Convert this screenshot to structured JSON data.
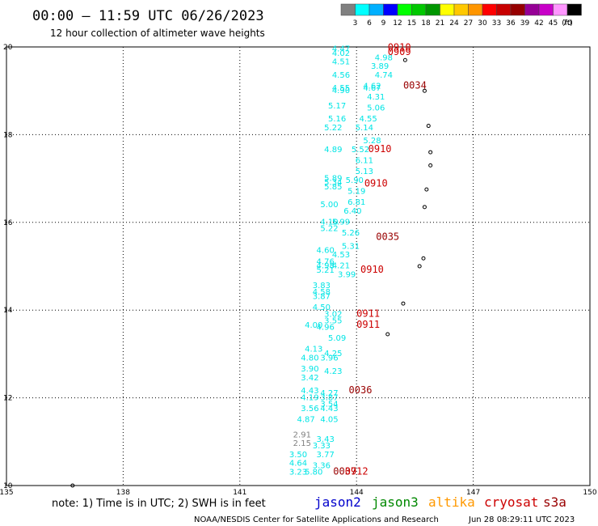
{
  "title": "00:00 – 11:59 UTC 06/26/2023",
  "subtitle": "12 hour collection of altimeter wave heights",
  "legend": {
    "values": [
      "3",
      "6",
      "9",
      "12",
      "15",
      "18",
      "21",
      "24",
      "27",
      "30",
      "33",
      "36",
      "39",
      "42",
      "45",
      "70",
      "(ft)"
    ],
    "colors": [
      "#808080",
      "#00ffff",
      "#00b0ff",
      "#0000ff",
      "#00ff00",
      "#00c800",
      "#009600",
      "#ffff00",
      "#ffc800",
      "#ff9600",
      "#ff0000",
      "#c80000",
      "#960000",
      "#960096",
      "#c800c8",
      "#ff96ff",
      "#000000"
    ]
  },
  "note": "note:  1) Time is in UTC;  2) SWH is in feet",
  "satellites": [
    {
      "name": "jason2",
      "color": "#0000cc"
    },
    {
      "name": "jason3",
      "color": "#008800"
    },
    {
      "name": "altika",
      "color": "#ff9900"
    },
    {
      "name": "cryosat",
      "color": "#cc0000"
    },
    {
      "name": "s3a",
      "color": "#990000"
    }
  ],
  "footer_left": "NOAA/NESDIS Center for Satellite Applications and Research",
  "footer_right": "Jun 28 08:29:11 UTC 2023",
  "chart_data": {
    "type": "scatter",
    "xlim": [
      135,
      150
    ],
    "ylim": [
      10,
      20
    ],
    "x_ticks": [
      135,
      138,
      141,
      144,
      147,
      150
    ],
    "y_ticks": [
      10,
      12,
      14,
      16,
      18,
      20
    ],
    "grid": true,
    "observations": [
      {
        "lon": 143.6,
        "lat": 19.9,
        "swh": "4.47",
        "color": "#00e5e5"
      },
      {
        "lon": 143.6,
        "lat": 19.8,
        "swh": "4.02",
        "color": "#00e5e5"
      },
      {
        "lon": 144.7,
        "lat": 19.7,
        "swh": "4.98",
        "color": "#00e5e5"
      },
      {
        "lon": 143.6,
        "lat": 19.6,
        "swh": "4.51",
        "color": "#00e5e5"
      },
      {
        "lon": 144.6,
        "lat": 19.5,
        "swh": "3.89",
        "color": "#00e5e5"
      },
      {
        "lon": 144.7,
        "lat": 19.3,
        "swh": "4.74",
        "color": "#00e5e5"
      },
      {
        "lon": 143.6,
        "lat": 19.3,
        "swh": "4.56",
        "color": "#00e5e5"
      },
      {
        "lon": 144.4,
        "lat": 19.05,
        "swh": "4.62",
        "color": "#00e5e5"
      },
      {
        "lon": 143.6,
        "lat": 19.0,
        "swh": "4.55",
        "color": "#00e5e5"
      },
      {
        "lon": 144.4,
        "lat": 19.0,
        "swh": "4.67",
        "color": "#00e5e5"
      },
      {
        "lon": 143.6,
        "lat": 18.95,
        "swh": "4.90",
        "color": "#00e5e5"
      },
      {
        "lon": 144.5,
        "lat": 18.8,
        "swh": "4.31",
        "color": "#00e5e5"
      },
      {
        "lon": 143.5,
        "lat": 18.6,
        "swh": "5.17",
        "color": "#00e5e5"
      },
      {
        "lon": 144.5,
        "lat": 18.55,
        "swh": "5.06",
        "color": "#00e5e5"
      },
      {
        "lon": 143.5,
        "lat": 18.3,
        "swh": "5.16",
        "color": "#00e5e5"
      },
      {
        "lon": 144.3,
        "lat": 18.3,
        "swh": "4.55",
        "color": "#00e5e5"
      },
      {
        "lon": 143.4,
        "lat": 18.1,
        "swh": "5.22",
        "color": "#00e5e5"
      },
      {
        "lon": 144.2,
        "lat": 18.1,
        "swh": "5.14",
        "color": "#00e5e5"
      },
      {
        "lon": 144.4,
        "lat": 17.8,
        "swh": "5.28",
        "color": "#00e5e5"
      },
      {
        "lon": 143.4,
        "lat": 17.6,
        "swh": "4.89",
        "color": "#00e5e5"
      },
      {
        "lon": 144.1,
        "lat": 17.6,
        "swh": "5.52",
        "color": "#00e5e5"
      },
      {
        "lon": 144.2,
        "lat": 17.35,
        "swh": "6.11",
        "color": "#00e5e5"
      },
      {
        "lon": 144.2,
        "lat": 17.1,
        "swh": "5.13",
        "color": "#00e5e5"
      },
      {
        "lon": 143.4,
        "lat": 16.95,
        "swh": "5.89",
        "color": "#00e5e5"
      },
      {
        "lon": 143.4,
        "lat": 16.85,
        "swh": "5.34",
        "color": "#00e5e5"
      },
      {
        "lon": 143.4,
        "lat": 16.75,
        "swh": "5.85",
        "color": "#00e5e5"
      },
      {
        "lon": 143.95,
        "lat": 16.9,
        "swh": "5.90",
        "color": "#00e5e5"
      },
      {
        "lon": 144.0,
        "lat": 16.65,
        "swh": "5.19",
        "color": "#00e5e5"
      },
      {
        "lon": 144.0,
        "lat": 16.4,
        "swh": "6.81",
        "color": "#00e5e5"
      },
      {
        "lon": 143.3,
        "lat": 16.35,
        "swh": "5.00",
        "color": "#00e5e5"
      },
      {
        "lon": 143.9,
        "lat": 16.2,
        "swh": "6.40",
        "color": "#00e5e5"
      },
      {
        "lon": 143.3,
        "lat": 15.95,
        "swh": "4.10",
        "color": "#00e5e5"
      },
      {
        "lon": 143.6,
        "lat": 15.95,
        "swh": "5.99",
        "color": "#00e5e5"
      },
      {
        "lon": 143.3,
        "lat": 15.8,
        "swh": "5.22",
        "color": "#00e5e5"
      },
      {
        "lon": 143.85,
        "lat": 15.7,
        "swh": "5.26",
        "color": "#00e5e5"
      },
      {
        "lon": 143.85,
        "lat": 15.4,
        "swh": "5.31",
        "color": "#00e5e5"
      },
      {
        "lon": 143.2,
        "lat": 15.3,
        "swh": "4.60",
        "color": "#00e5e5"
      },
      {
        "lon": 143.6,
        "lat": 15.2,
        "swh": "4.53",
        "color": "#00e5e5"
      },
      {
        "lon": 143.2,
        "lat": 15.05,
        "swh": "4.76",
        "color": "#00e5e5"
      },
      {
        "lon": 143.2,
        "lat": 14.95,
        "swh": "4.98",
        "color": "#00e5e5"
      },
      {
        "lon": 143.6,
        "lat": 14.95,
        "swh": "4.21",
        "color": "#00e5e5"
      },
      {
        "lon": 143.2,
        "lat": 14.85,
        "swh": "5.21",
        "color": "#00e5e5"
      },
      {
        "lon": 143.75,
        "lat": 14.75,
        "swh": "3.99",
        "color": "#00e5e5"
      },
      {
        "lon": 143.1,
        "lat": 14.5,
        "swh": "3.83",
        "color": "#00e5e5"
      },
      {
        "lon": 143.1,
        "lat": 14.35,
        "swh": "4.58",
        "color": "#00e5e5"
      },
      {
        "lon": 143.1,
        "lat": 14.25,
        "swh": "3.87",
        "color": "#00e5e5"
      },
      {
        "lon": 143.1,
        "lat": 14.0,
        "swh": "4.50",
        "color": "#00e5e5"
      },
      {
        "lon": 143.4,
        "lat": 13.85,
        "swh": "3.02",
        "color": "#00e5e5"
      },
      {
        "lon": 143.4,
        "lat": 13.7,
        "swh": "3.55",
        "color": "#00e5e5"
      },
      {
        "lon": 142.9,
        "lat": 13.6,
        "swh": "4.00",
        "color": "#00e5e5"
      },
      {
        "lon": 143.2,
        "lat": 13.55,
        "swh": "4.96",
        "color": "#00e5e5"
      },
      {
        "lon": 143.5,
        "lat": 13.3,
        "swh": "5.09",
        "color": "#00e5e5"
      },
      {
        "lon": 142.9,
        "lat": 13.05,
        "swh": "4.13",
        "color": "#00e5e5"
      },
      {
        "lon": 143.4,
        "lat": 12.95,
        "swh": "4.25",
        "color": "#00e5e5"
      },
      {
        "lon": 142.8,
        "lat": 12.85,
        "swh": "4.80",
        "color": "#00e5e5"
      },
      {
        "lon": 143.3,
        "lat": 12.85,
        "swh": "3.96",
        "color": "#00e5e5"
      },
      {
        "lon": 142.8,
        "lat": 12.6,
        "swh": "3.90",
        "color": "#00e5e5"
      },
      {
        "lon": 143.4,
        "lat": 12.55,
        "swh": "4.23",
        "color": "#00e5e5"
      },
      {
        "lon": 142.8,
        "lat": 12.4,
        "swh": "3.42",
        "color": "#00e5e5"
      },
      {
        "lon": 142.8,
        "lat": 12.1,
        "swh": "4.43",
        "color": "#00e5e5"
      },
      {
        "lon": 143.3,
        "lat": 12.05,
        "swh": "4.27",
        "color": "#00e5e5"
      },
      {
        "lon": 142.8,
        "lat": 11.95,
        "swh": "4.19",
        "color": "#00e5e5"
      },
      {
        "lon": 143.3,
        "lat": 11.95,
        "swh": "3.87",
        "color": "#00e5e5"
      },
      {
        "lon": 143.3,
        "lat": 11.8,
        "swh": "3.54",
        "color": "#00e5e5"
      },
      {
        "lon": 142.8,
        "lat": 11.7,
        "swh": "3.56",
        "color": "#00e5e5"
      },
      {
        "lon": 143.3,
        "lat": 11.7,
        "swh": "4.43",
        "color": "#00e5e5"
      },
      {
        "lon": 142.7,
        "lat": 11.45,
        "swh": "4.87",
        "color": "#00e5e5"
      },
      {
        "lon": 143.3,
        "lat": 11.45,
        "swh": "4.05",
        "color": "#00e5e5"
      },
      {
        "lon": 142.6,
        "lat": 11.1,
        "swh": "2.91",
        "color": "#808080"
      },
      {
        "lon": 143.2,
        "lat": 11.0,
        "swh": "3.43",
        "color": "#00e5e5"
      },
      {
        "lon": 142.6,
        "lat": 10.9,
        "swh": "2.15",
        "color": "#808080"
      },
      {
        "lon": 143.1,
        "lat": 10.85,
        "swh": "3.33",
        "color": "#00e5e5"
      },
      {
        "lon": 142.5,
        "lat": 10.65,
        "swh": "3.50",
        "color": "#00e5e5"
      },
      {
        "lon": 143.2,
        "lat": 10.65,
        "swh": "3.77",
        "color": "#00e5e5"
      },
      {
        "lon": 142.5,
        "lat": 10.45,
        "swh": "4.64",
        "color": "#00e5e5"
      },
      {
        "lon": 143.1,
        "lat": 10.4,
        "swh": "3.36",
        "color": "#00e5e5"
      },
      {
        "lon": 142.5,
        "lat": 10.25,
        "swh": "3.23",
        "color": "#00e5e5"
      },
      {
        "lon": 142.9,
        "lat": 10.25,
        "swh": "5.80",
        "color": "#00e5e5"
      }
    ],
    "pass_times": [
      {
        "lon": 145.1,
        "lat": 19.92,
        "time": "0910",
        "color": "#cc0000"
      },
      {
        "lon": 145.1,
        "lat": 19.82,
        "time": "0909",
        "color": "#cc0000"
      },
      {
        "lon": 145.5,
        "lat": 19.05,
        "time": "0034",
        "color": "#990000"
      },
      {
        "lon": 144.6,
        "lat": 17.6,
        "swh_time": "0910",
        "time": "0910",
        "color": "#cc0000"
      },
      {
        "lon": 144.5,
        "lat": 16.82,
        "time": "0910",
        "color": "#cc0000"
      },
      {
        "lon": 144.8,
        "lat": 15.6,
        "time": "0035",
        "color": "#990000"
      },
      {
        "lon": 144.4,
        "lat": 14.85,
        "time": "0910",
        "color": "#cc0000"
      },
      {
        "lon": 144.3,
        "lat": 13.85,
        "time": "0911",
        "color": "#cc0000"
      },
      {
        "lon": 144.3,
        "lat": 13.6,
        "time": "0911",
        "color": "#cc0000"
      },
      {
        "lon": 144.1,
        "lat": 12.1,
        "time": "0036",
        "color": "#990000"
      },
      {
        "lon": 143.7,
        "lat": 10.25,
        "time": "0037",
        "color": "#990000"
      },
      {
        "lon": 144.0,
        "lat": 10.25,
        "time": "0912",
        "color": "#cc0000"
      }
    ],
    "islands": [
      {
        "lon": 145.25,
        "lat": 19.7
      },
      {
        "lon": 145.75,
        "lat": 19.0
      },
      {
        "lon": 145.85,
        "lat": 18.2
      },
      {
        "lon": 145.9,
        "lat": 17.6
      },
      {
        "lon": 145.9,
        "lat": 17.3
      },
      {
        "lon": 145.8,
        "lat": 16.75
      },
      {
        "lon": 145.75,
        "lat": 16.35
      },
      {
        "lon": 145.72,
        "lat": 15.18
      },
      {
        "lon": 145.62,
        "lat": 15.0
      },
      {
        "lon": 145.2,
        "lat": 14.15
      },
      {
        "lon": 144.8,
        "lat": 13.45
      },
      {
        "lon": 136.7,
        "lat": 10.0
      }
    ]
  }
}
